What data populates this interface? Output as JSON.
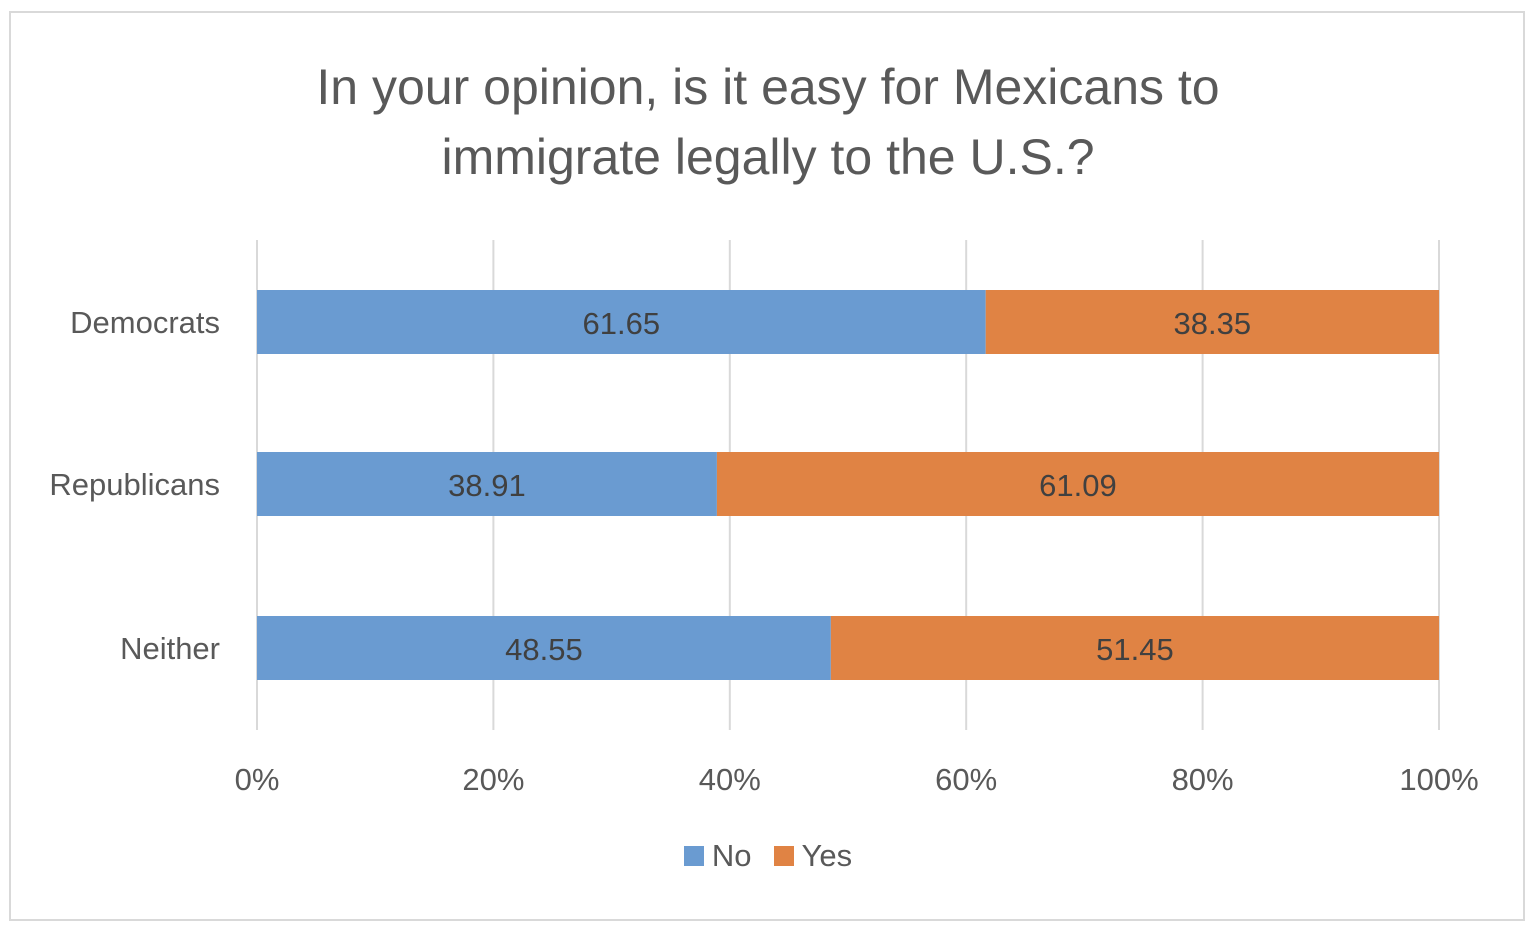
{
  "chart_data": {
    "type": "bar",
    "orientation": "horizontal",
    "stacked": "percent",
    "title": "In your opinion, is it easy for Mexicans to immigrate legally to the U.S.?",
    "title_lines": [
      "In your opinion, is it easy for Mexicans to",
      "immigrate legally to the U.S.?"
    ],
    "categories": [
      "Democrats",
      "Republicans",
      "Neither"
    ],
    "series": [
      {
        "name": "No",
        "color": "#6a9bd1",
        "values": [
          61.65,
          38.91,
          48.55
        ],
        "labels": [
          "61.65",
          "38.91",
          "48.55"
        ]
      },
      {
        "name": "Yes",
        "color": "#e08344",
        "values": [
          38.35,
          61.09,
          51.45
        ],
        "labels": [
          "38.35",
          "61.09",
          "51.45"
        ]
      }
    ],
    "xlim": [
      0,
      100
    ],
    "x_ticks": [
      0,
      20,
      40,
      60,
      80,
      100
    ],
    "x_tick_labels": [
      "0%",
      "20%",
      "40%",
      "60%",
      "80%",
      "100%"
    ],
    "xlabel": "",
    "ylabel": "",
    "grid": true,
    "legend": "bottom"
  }
}
